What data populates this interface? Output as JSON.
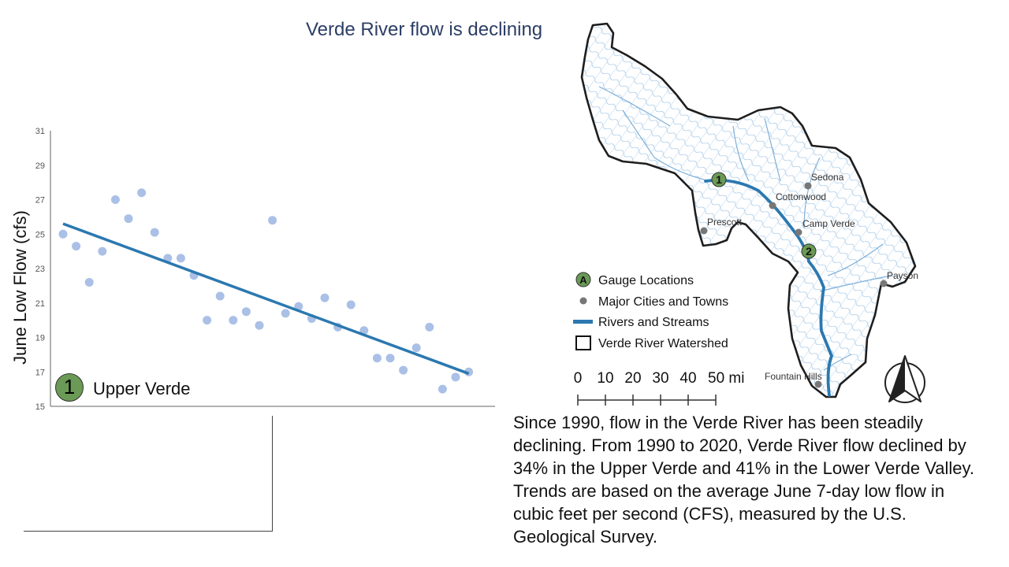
{
  "title": "Verde River flow is declining",
  "chart_data": {
    "type": "scatter",
    "ylabel": "June Low Flow (cfs)",
    "xlabel": "",
    "x_range": [
      1990,
      2020
    ],
    "ylim": [
      15,
      31
    ],
    "yticks": [
      15,
      17,
      19,
      21,
      23,
      25,
      27,
      29,
      31
    ],
    "points": [
      {
        "x": 1990,
        "y": 25.0
      },
      {
        "x": 1991,
        "y": 24.3
      },
      {
        "x": 1992,
        "y": 22.2
      },
      {
        "x": 1993,
        "y": 24.0
      },
      {
        "x": 1994,
        "y": 27.0
      },
      {
        "x": 1995,
        "y": 25.9
      },
      {
        "x": 1996,
        "y": 27.4
      },
      {
        "x": 1997,
        "y": 25.1
      },
      {
        "x": 1998,
        "y": 23.6
      },
      {
        "x": 1999,
        "y": 23.6
      },
      {
        "x": 2000,
        "y": 22.6
      },
      {
        "x": 2001,
        "y": 20.0
      },
      {
        "x": 2002,
        "y": 21.4
      },
      {
        "x": 2003,
        "y": 20.0
      },
      {
        "x": 2004,
        "y": 20.5
      },
      {
        "x": 2005,
        "y": 19.7
      },
      {
        "x": 2006,
        "y": 25.8
      },
      {
        "x": 2007,
        "y": 20.4
      },
      {
        "x": 2008,
        "y": 20.8
      },
      {
        "x": 2009,
        "y": 20.1
      },
      {
        "x": 2010,
        "y": 21.3
      },
      {
        "x": 2011,
        "y": 19.6
      },
      {
        "x": 2012,
        "y": 20.9
      },
      {
        "x": 2013,
        "y": 19.4
      },
      {
        "x": 2014,
        "y": 17.8
      },
      {
        "x": 2015,
        "y": 17.8
      },
      {
        "x": 2016,
        "y": 17.1
      },
      {
        "x": 2017,
        "y": 18.4
      },
      {
        "x": 2018,
        "y": 19.6
      },
      {
        "x": 2019,
        "y": 16.0
      },
      {
        "x": 2020,
        "y": 16.7
      },
      {
        "x": 2021,
        "y": 17.0
      }
    ],
    "trendline": {
      "x": [
        1990,
        2021
      ],
      "y": [
        25.6,
        16.9
      ]
    },
    "point_color": "#aac0e6",
    "trend_color": "#2b78b0",
    "grid": false
  },
  "gauge_badge": {
    "number": "1",
    "label": "Upper Verde",
    "color": "#6a9a55"
  },
  "map": {
    "gauges": [
      "1",
      "2"
    ],
    "cities": [
      "Sedona",
      "Cottonwood",
      "Prescott",
      "Camp Verde",
      "Payson",
      "Fountain Hills"
    ],
    "legend": {
      "gauge_symbol": "A",
      "gauges": "Gauge Locations",
      "cities": "Major Cities and Towns",
      "rivers": "Rivers and Streams",
      "watershed": "Verde River Watershed"
    },
    "scale": {
      "ticks": [
        "0",
        "10",
        "20",
        "30",
        "40"
      ],
      "last": "50 mi"
    },
    "colors": {
      "river": "#2b78b0",
      "streams": "#7fb0d8",
      "gauge": "#6a9a55",
      "city": "#777777"
    }
  },
  "description": "Since 1990, flow in the Verde River has been steadily declining. From 1990 to 2020, Verde River flow declined by 34% in the Upper Verde and 41% in the Lower Verde Valley. Trends are based on the average June 7-day low flow in cubic feet per second (CFS), measured by the U.S. Geological Survey."
}
